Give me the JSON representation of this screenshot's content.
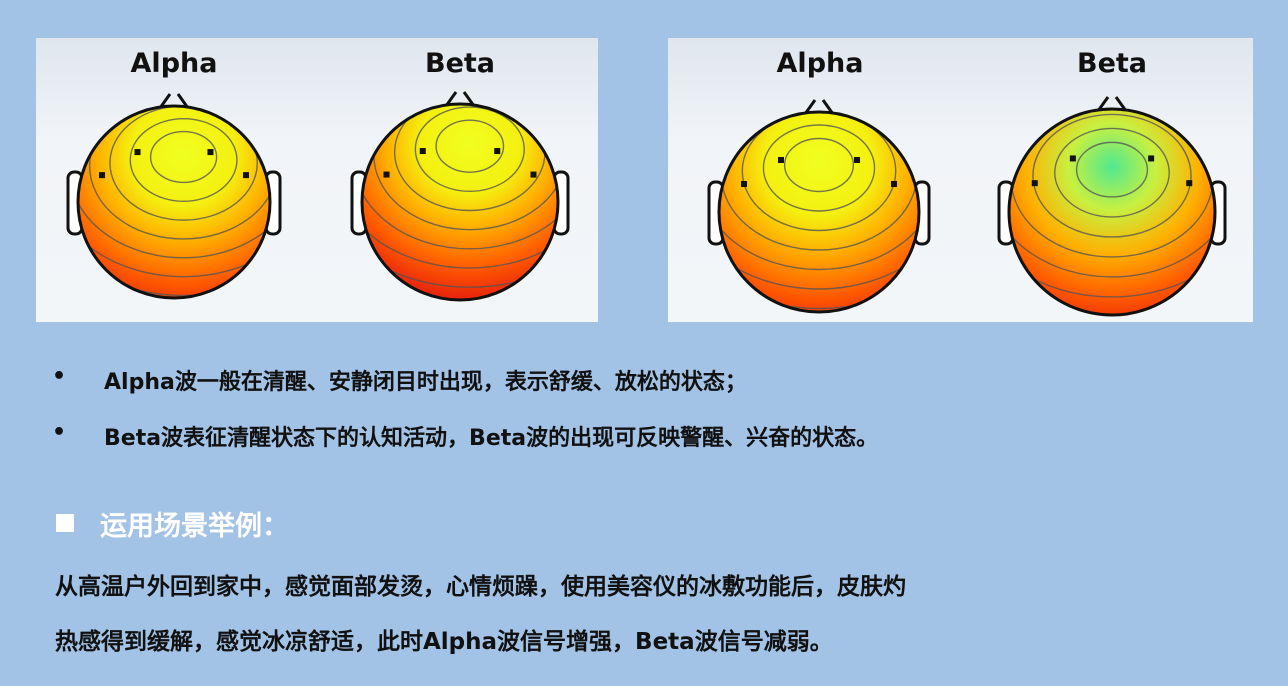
{
  "figures": [
    {
      "panel": "left",
      "maps": [
        {
          "title": "Alpha"
        },
        {
          "title": "Beta"
        }
      ]
    },
    {
      "panel": "right",
      "maps": [
        {
          "title": "Alpha"
        },
        {
          "title": "Beta"
        }
      ]
    }
  ],
  "bullets": [
    "Alpha波一般在清醒、安静闭目时出现，表示舒缓、放松的状态；",
    "Beta波表征清醒状态下的认知活动，Beta波的出现可反映警醒、兴奋的状态。"
  ],
  "bullet_symbol": "•",
  "section": {
    "heading": "运用场景举例：",
    "lines": [
      "从高温户外回到家中，感觉面部发烫，心情烦躁，使用美容仪的冰敷功能后，皮肤灼",
      "热感得到缓解，感觉冰凉舒适，此时Alpha波信号增强，Beta波信号减弱。"
    ]
  },
  "colors": {
    "background": "#a2c3e6",
    "high": "#e01010",
    "mid": "#ffb000",
    "low_yellow": "#f0ff20",
    "low_green": "#50e890"
  }
}
